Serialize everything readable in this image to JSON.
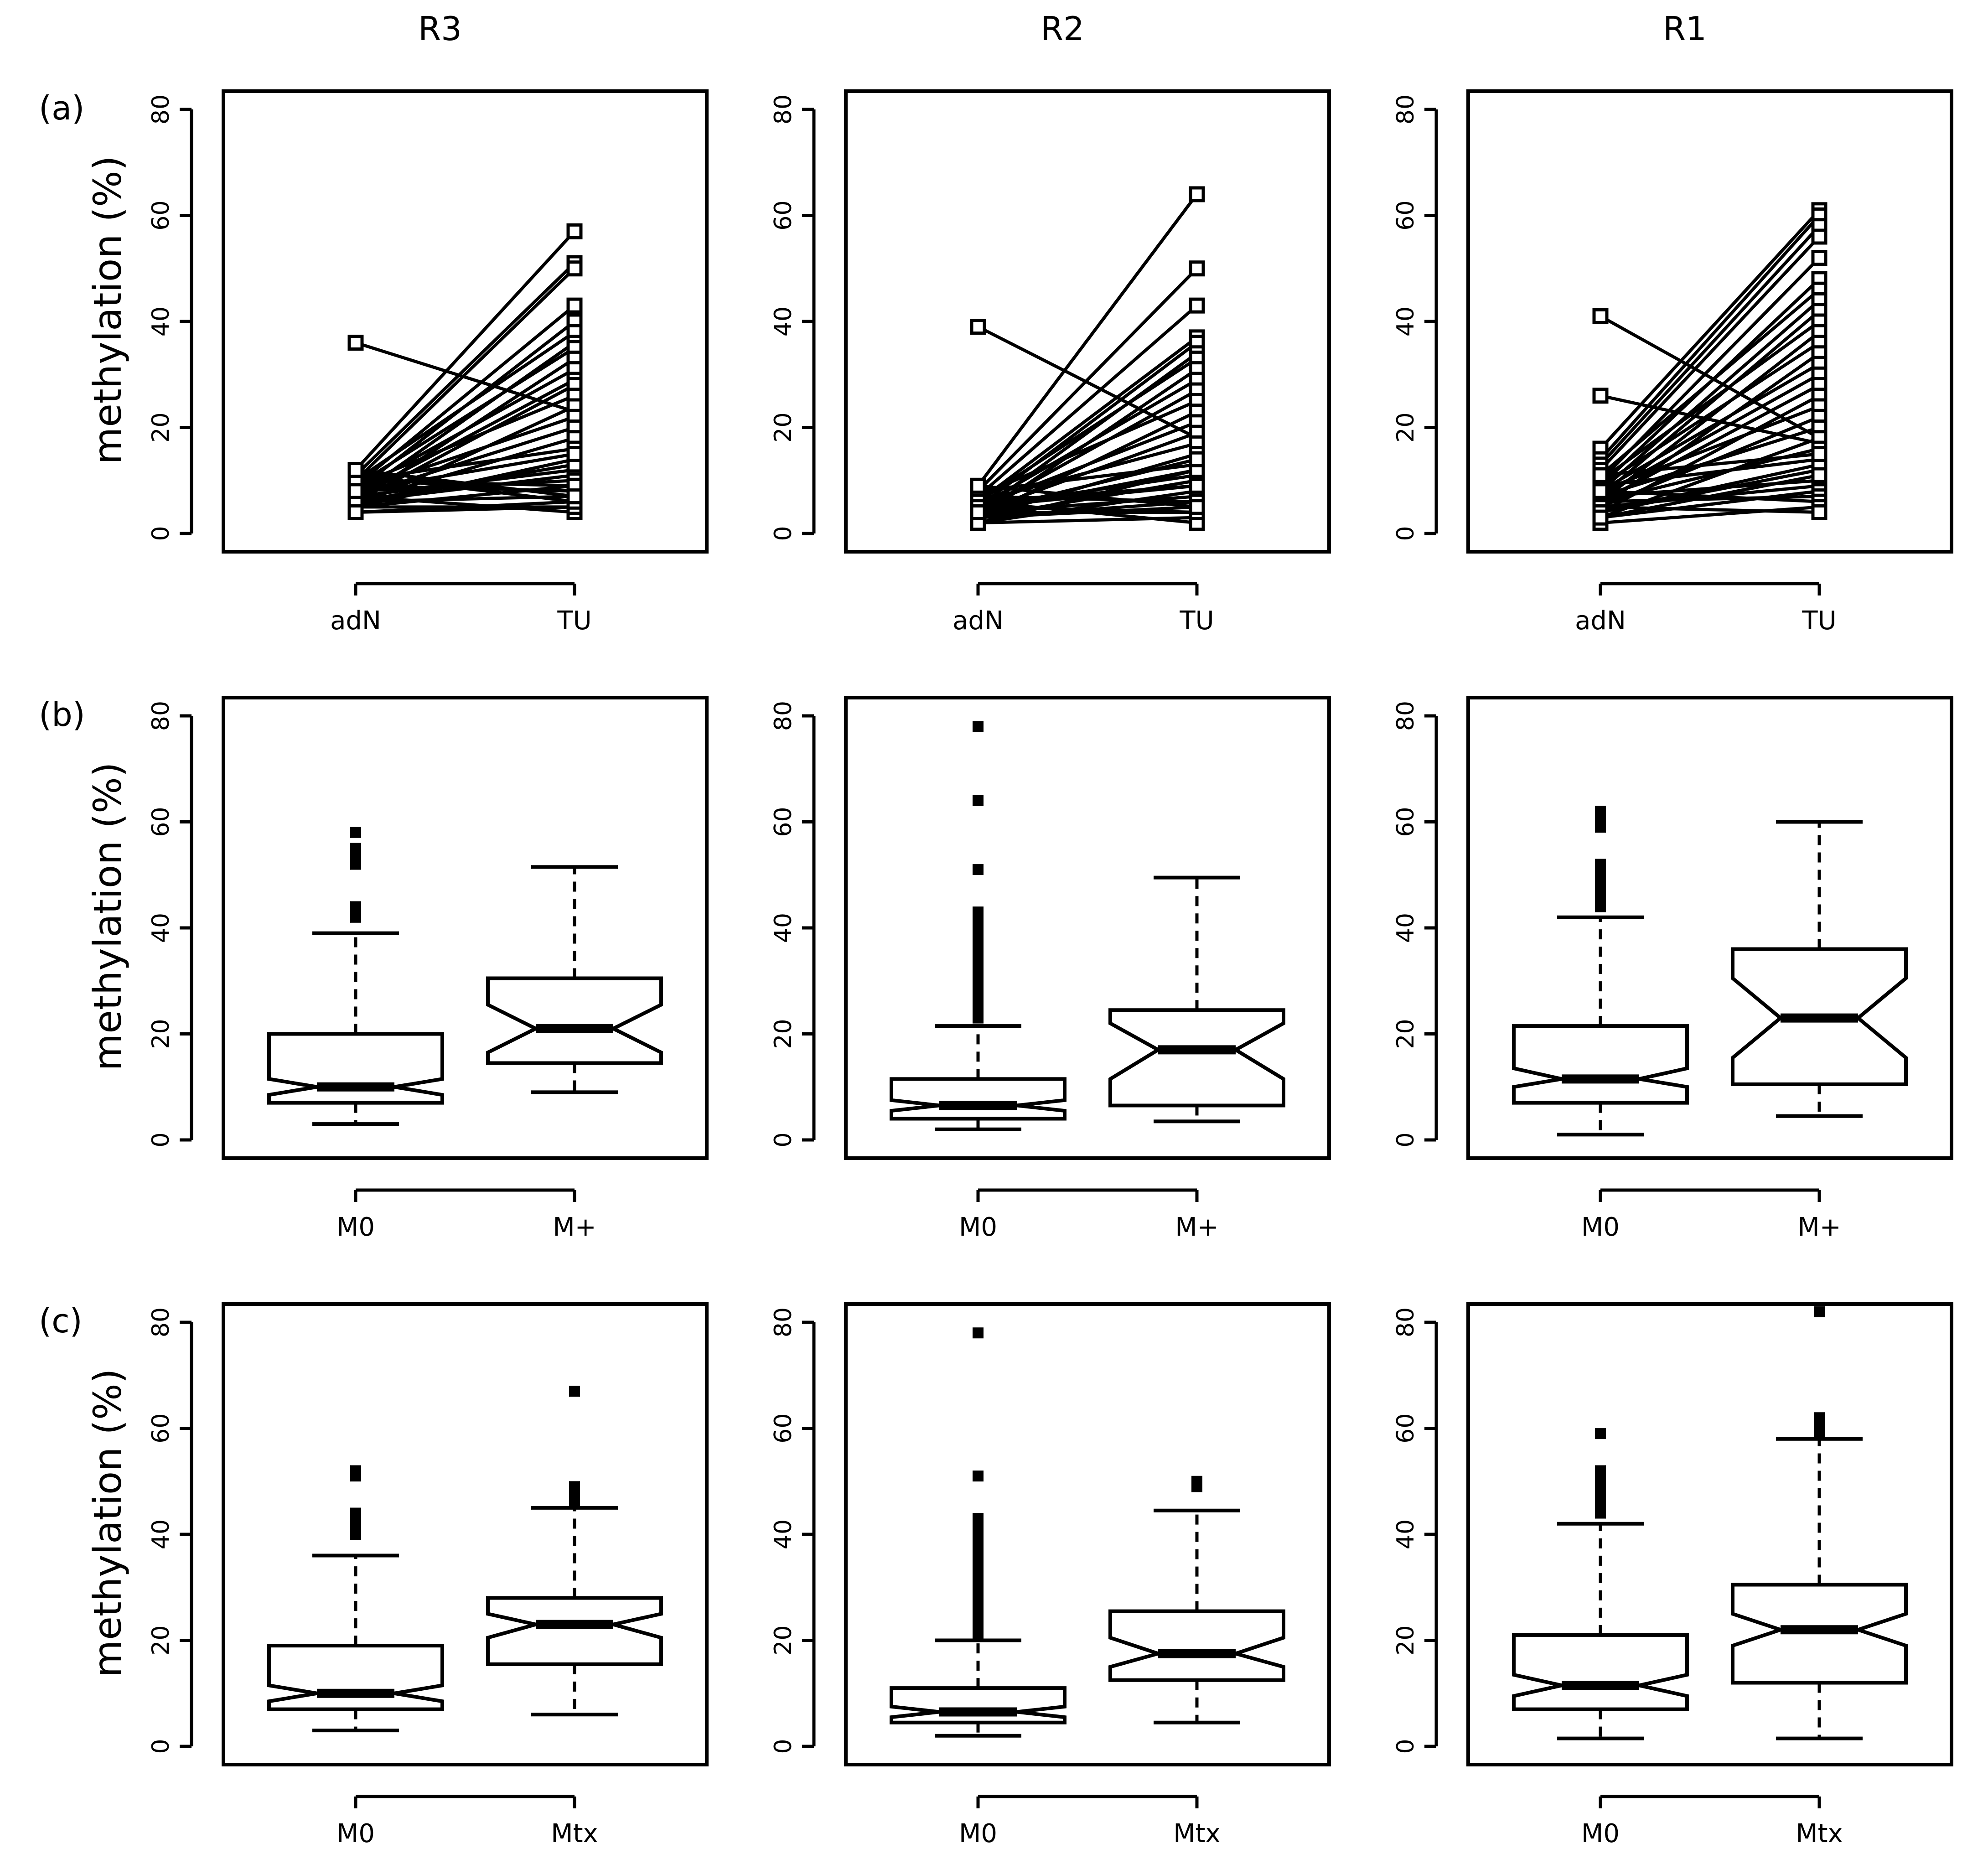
{
  "figure": {
    "column_titles": [
      "R3",
      "R2",
      "R1"
    ],
    "row_labels": [
      "(a)",
      "(b)",
      "(c)"
    ],
    "ylabel": "methylation (%)",
    "y_ticks": [
      "0",
      "20",
      "40",
      "60",
      "80"
    ]
  },
  "chart_data": [
    {
      "row": "a",
      "column": "R3",
      "type": "line",
      "panel_type": "paired",
      "categories": [
        "adN",
        "TU"
      ],
      "ylim": [
        0,
        80
      ],
      "ylabel": "methylation (%)",
      "pairs": [
        [
          36,
          23
        ],
        [
          12,
          57
        ],
        [
          11,
          51
        ],
        [
          10,
          50
        ],
        [
          9,
          43
        ],
        [
          8,
          40
        ],
        [
          10,
          38
        ],
        [
          7,
          36
        ],
        [
          9,
          35
        ],
        [
          6,
          33
        ],
        [
          8,
          31
        ],
        [
          7,
          29
        ],
        [
          6,
          28
        ],
        [
          9,
          26
        ],
        [
          5,
          24
        ],
        [
          8,
          22
        ],
        [
          7,
          20
        ],
        [
          6,
          18
        ],
        [
          10,
          16
        ],
        [
          5,
          14
        ],
        [
          7,
          12
        ],
        [
          6,
          11
        ],
        [
          8,
          10
        ],
        [
          5,
          9
        ],
        [
          9,
          8
        ],
        [
          6,
          7
        ],
        [
          11,
          6
        ],
        [
          4,
          5
        ],
        [
          7,
          4
        ],
        [
          5,
          5
        ],
        [
          10,
          9
        ],
        [
          6,
          13
        ],
        [
          8,
          15
        ],
        [
          4,
          6
        ],
        [
          12,
          7
        ]
      ]
    },
    {
      "row": "a",
      "column": "R2",
      "type": "line",
      "panel_type": "paired",
      "categories": [
        "adN",
        "TU"
      ],
      "ylim": [
        0,
        80
      ],
      "ylabel": "methylation (%)",
      "pairs": [
        [
          39,
          18
        ],
        [
          9,
          64
        ],
        [
          8,
          50
        ],
        [
          7,
          43
        ],
        [
          6,
          37
        ],
        [
          5,
          36
        ],
        [
          4,
          34
        ],
        [
          6,
          33
        ],
        [
          3,
          31
        ],
        [
          5,
          29
        ],
        [
          4,
          27
        ],
        [
          7,
          25
        ],
        [
          3,
          23
        ],
        [
          5,
          21
        ],
        [
          4,
          19
        ],
        [
          6,
          17
        ],
        [
          3,
          15
        ],
        [
          8,
          13
        ],
        [
          4,
          12
        ],
        [
          5,
          11
        ],
        [
          3,
          10
        ],
        [
          6,
          9
        ],
        [
          2,
          8
        ],
        [
          4,
          7
        ],
        [
          7,
          6
        ],
        [
          3,
          5
        ],
        [
          5,
          4
        ],
        [
          2,
          3
        ],
        [
          6,
          2
        ],
        [
          4,
          4
        ],
        [
          3,
          6
        ],
        [
          5,
          9
        ],
        [
          2,
          12
        ],
        [
          9,
          5
        ],
        [
          4,
          14
        ]
      ]
    },
    {
      "row": "a",
      "column": "R1",
      "type": "line",
      "panel_type": "paired",
      "categories": [
        "adN",
        "TU"
      ],
      "ylim": [
        0,
        80
      ],
      "ylabel": "methylation (%)",
      "pairs": [
        [
          41,
          18
        ],
        [
          26,
          17
        ],
        [
          16,
          61
        ],
        [
          14,
          60
        ],
        [
          13,
          58
        ],
        [
          12,
          56
        ],
        [
          10,
          52
        ],
        [
          9,
          48
        ],
        [
          11,
          46
        ],
        [
          8,
          44
        ],
        [
          7,
          42
        ],
        [
          10,
          40
        ],
        [
          6,
          38
        ],
        [
          9,
          36
        ],
        [
          5,
          34
        ],
        [
          8,
          32
        ],
        [
          7,
          30
        ],
        [
          6,
          28
        ],
        [
          4,
          26
        ],
        [
          8,
          24
        ],
        [
          5,
          22
        ],
        [
          7,
          20
        ],
        [
          3,
          18
        ],
        [
          6,
          16
        ],
        [
          9,
          14
        ],
        [
          4,
          12
        ],
        [
          7,
          10
        ],
        [
          5,
          9
        ],
        [
          3,
          8
        ],
        [
          6,
          7
        ],
        [
          8,
          6
        ],
        [
          2,
          5
        ],
        [
          5,
          4
        ],
        [
          4,
          13
        ],
        [
          11,
          15
        ],
        [
          3,
          11
        ]
      ]
    },
    {
      "row": "b",
      "column": "R3",
      "type": "box",
      "ylim": [
        0,
        80
      ],
      "ylabel": "methylation (%)",
      "categories": [
        "M0",
        "M+"
      ],
      "boxes": [
        {
          "label": "M0",
          "whisker_low": 3,
          "q1": 7,
          "median": 10,
          "q3": 20,
          "whisker_high": 39,
          "notch_low": 8.5,
          "notch_high": 11.5,
          "outliers": [
            42,
            43,
            44,
            52,
            53,
            55,
            58
          ]
        },
        {
          "label": "M+",
          "whisker_low": 9,
          "q1": 14.5,
          "median": 21,
          "q3": 30.5,
          "whisker_high": 51.5,
          "notch_low": 16.5,
          "notch_high": 25.5,
          "outliers": []
        }
      ]
    },
    {
      "row": "b",
      "column": "R2",
      "type": "box",
      "ylim": [
        0,
        80
      ],
      "ylabel": "methylation (%)",
      "categories": [
        "M0",
        "M+"
      ],
      "boxes": [
        {
          "label": "M0",
          "whisker_low": 2,
          "q1": 4,
          "median": 6.5,
          "q3": 11.5,
          "whisker_high": 21.5,
          "notch_low": 5.5,
          "notch_high": 7.5,
          "outliers": [
            23,
            25,
            27,
            29,
            30,
            31,
            33,
            35,
            36,
            37,
            39,
            41,
            43,
            51,
            64,
            78
          ]
        },
        {
          "label": "M+",
          "whisker_low": 3.5,
          "q1": 6.5,
          "median": 17,
          "q3": 24.5,
          "whisker_high": 49.5,
          "notch_low": 11.5,
          "notch_high": 22,
          "outliers": []
        }
      ]
    },
    {
      "row": "b",
      "column": "R1",
      "type": "box",
      "ylim": [
        0,
        80
      ],
      "ylabel": "methylation (%)",
      "categories": [
        "M0",
        "M+"
      ],
      "boxes": [
        {
          "label": "M0",
          "whisker_low": 1,
          "q1": 7,
          "median": 11.5,
          "q3": 21.5,
          "whisker_high": 42,
          "notch_low": 10,
          "notch_high": 13.5,
          "outliers": [
            44,
            45,
            46,
            48,
            50,
            51,
            52,
            59,
            61,
            62
          ]
        },
        {
          "label": "M+",
          "whisker_low": 4.5,
          "q1": 10.5,
          "median": 23,
          "q3": 36,
          "whisker_high": 60,
          "notch_low": 15.5,
          "notch_high": 30.5,
          "outliers": []
        }
      ]
    },
    {
      "row": "c",
      "column": "R3",
      "type": "box",
      "ylim": [
        0,
        80
      ],
      "ylabel": "methylation (%)",
      "categories": [
        "M0",
        "Mtx"
      ],
      "boxes": [
        {
          "label": "M0",
          "whisker_low": 3,
          "q1": 7,
          "median": 10,
          "q3": 19,
          "whisker_high": 36,
          "notch_low": 8.5,
          "notch_high": 11.5,
          "outliers": [
            40,
            41,
            42,
            43,
            44,
            51,
            52
          ]
        },
        {
          "label": "Mtx",
          "whisker_low": 6,
          "q1": 15.5,
          "median": 23,
          "q3": 28,
          "whisker_high": 45,
          "notch_low": 20.5,
          "notch_high": 25,
          "outliers": [
            46,
            47,
            48,
            49,
            67
          ]
        }
      ]
    },
    {
      "row": "c",
      "column": "R2",
      "type": "box",
      "ylim": [
        0,
        80
      ],
      "ylabel": "methylation (%)",
      "categories": [
        "M0",
        "Mtx"
      ],
      "boxes": [
        {
          "label": "M0",
          "whisker_low": 2,
          "q1": 4.5,
          "median": 6.5,
          "q3": 11,
          "whisker_high": 20,
          "notch_low": 5.5,
          "notch_high": 7.5,
          "outliers": [
            21,
            22,
            24,
            26,
            28,
            30,
            32,
            34,
            36,
            38,
            40,
            42,
            43,
            51,
            78
          ]
        },
        {
          "label": "Mtx",
          "whisker_low": 4.5,
          "q1": 12.5,
          "median": 17.5,
          "q3": 25.5,
          "whisker_high": 44.5,
          "notch_low": 15,
          "notch_high": 20.5,
          "outliers": [
            49,
            50
          ]
        }
      ]
    },
    {
      "row": "c",
      "column": "R1",
      "type": "box",
      "ylim": [
        0,
        80
      ],
      "ylabel": "methylation (%)",
      "categories": [
        "M0",
        "Mtx"
      ],
      "boxes": [
        {
          "label": "M0",
          "whisker_low": 1.5,
          "q1": 7,
          "median": 11.5,
          "q3": 21,
          "whisker_high": 42,
          "notch_low": 9.5,
          "notch_high": 13.5,
          "outliers": [
            44,
            45,
            46,
            47,
            49,
            51,
            52,
            59
          ]
        },
        {
          "label": "Mtx",
          "whisker_low": 1.5,
          "q1": 12,
          "median": 22,
          "q3": 30.5,
          "whisker_high": 58,
          "notch_low": 19,
          "notch_high": 25,
          "outliers": [
            59,
            61,
            62,
            82
          ]
        }
      ]
    }
  ]
}
